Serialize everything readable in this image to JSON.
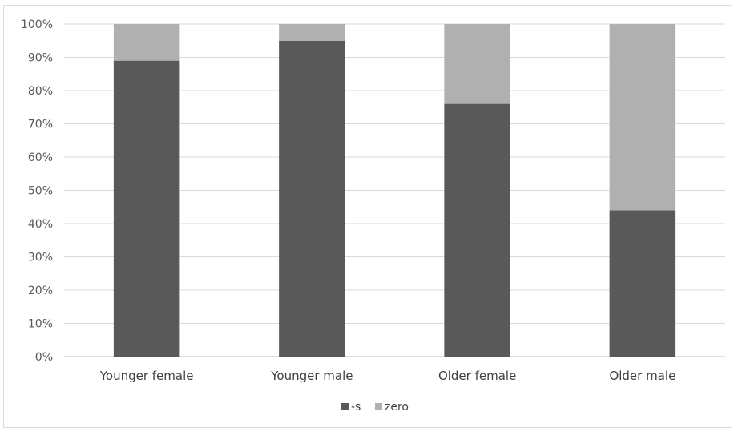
{
  "chart_data": {
    "type": "bar",
    "stacked": true,
    "percent": true,
    "categories": [
      "Younger female",
      "Younger male",
      "Older female",
      "Older male"
    ],
    "series": [
      {
        "name": "-s",
        "values": [
          89,
          95,
          76,
          44
        ],
        "color": "#595959"
      },
      {
        "name": "zero",
        "values": [
          11,
          5,
          24,
          56
        ],
        "color": "#b0b0b0"
      }
    ],
    "ylim": [
      0,
      100
    ],
    "yticks": [
      "0%",
      "10%",
      "20%",
      "30%",
      "40%",
      "50%",
      "60%",
      "70%",
      "80%",
      "90%",
      "100%"
    ],
    "grid": true,
    "legend_position": "bottom-center"
  }
}
